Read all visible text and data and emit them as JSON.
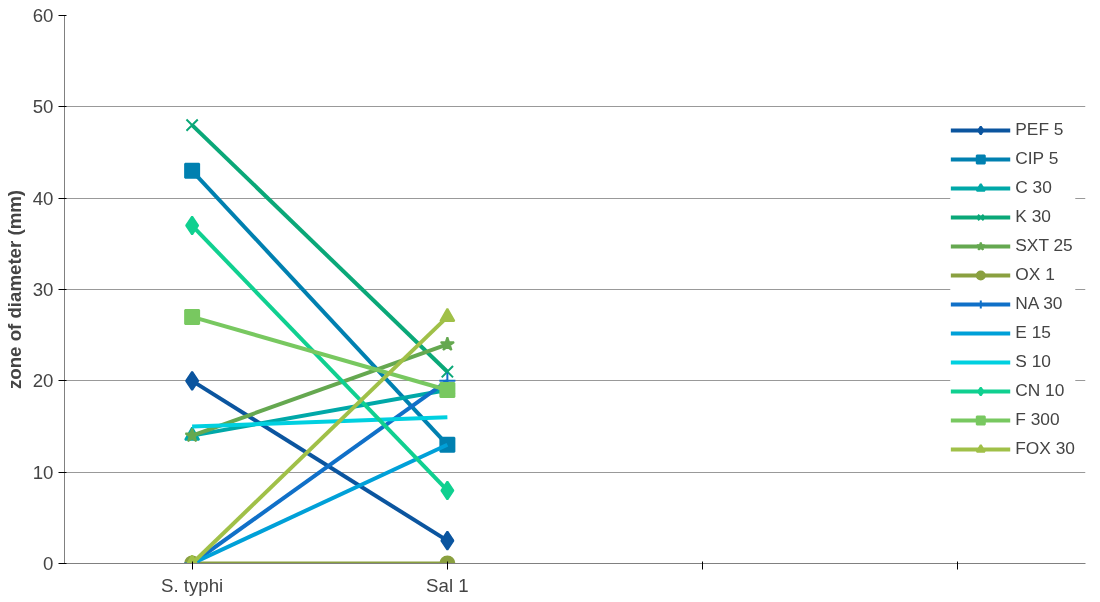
{
  "chart_data": {
    "type": "line",
    "ylabel": "zone of diameter (mm)",
    "categories": [
      "S. typhi",
      "Sal 1",
      null,
      null
    ],
    "ylim": [
      0,
      60
    ],
    "yticks": [
      0,
      10,
      20,
      30,
      40,
      50,
      60
    ],
    "grid": "y",
    "legend": "right",
    "series": [
      {
        "name": "PEF 5",
        "color": "#0b559f",
        "marker": "diamond",
        "values": [
          20,
          2.5,
          null,
          null
        ]
      },
      {
        "name": "CIP 5",
        "color": "#0080b0",
        "marker": "square",
        "values": [
          43,
          13,
          null,
          null
        ]
      },
      {
        "name": "C 30",
        "color": "#00a8a8",
        "marker": "triangle",
        "values": [
          14,
          19,
          null,
          null
        ]
      },
      {
        "name": "K 30",
        "color": "#0aa878",
        "marker": "x",
        "values": [
          48,
          21,
          null,
          null
        ]
      },
      {
        "name": "SXT 25",
        "color": "#65a850",
        "marker": "star",
        "values": [
          14,
          24,
          null,
          null
        ]
      },
      {
        "name": "OX 1",
        "color": "#8aa040",
        "marker": "circle",
        "values": [
          0,
          0,
          null,
          null
        ]
      },
      {
        "name": "NA 30",
        "color": "#1070c8",
        "marker": "cross",
        "values": [
          0,
          20,
          null,
          null
        ]
      },
      {
        "name": "E 15",
        "color": "#00a0d8",
        "marker": "none",
        "values": [
          0,
          13,
          null,
          null
        ]
      },
      {
        "name": "S 10",
        "color": "#00d0e0",
        "marker": "none",
        "values": [
          15,
          16,
          null,
          null
        ]
      },
      {
        "name": "CN 10",
        "color": "#10d090",
        "marker": "diamond",
        "values": [
          37,
          8,
          null,
          null
        ]
      },
      {
        "name": "F 300",
        "color": "#78c860",
        "marker": "square",
        "values": [
          27,
          19,
          null,
          null
        ]
      },
      {
        "name": "FOX 30",
        "color": "#a0c048",
        "marker": "triangle",
        "values": [
          0,
          27,
          null,
          null
        ]
      }
    ]
  }
}
